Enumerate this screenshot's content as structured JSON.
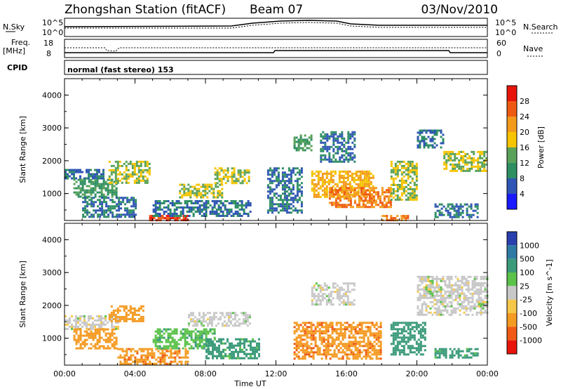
{
  "header": {
    "title": "Zhongshan Station (fitACF)",
    "beam": "Beam 07",
    "date": "03/Nov/2010"
  },
  "status_panels": {
    "nsky_label": "N.Sky",
    "nsky_ticks": [
      "10^5",
      "10^0"
    ],
    "nsearch_label": "N.Search",
    "nsearch_ticks": [
      "10^5",
      "10^0"
    ],
    "freq_label_1": "Freq.",
    "freq_label_2": "[MHz]",
    "freq_ticks": [
      "18",
      "8"
    ],
    "nave_label": "Nave",
    "nave_ticks": [
      "60",
      "0"
    ],
    "cpid_label": "CPID",
    "cpid_text": "normal (fast stereo) 153"
  },
  "colors": {
    "power_scale": [
      "#1a1aff",
      "#2f56b4",
      "#2e8f63",
      "#5aa25a",
      "#f6c400",
      "#f39a1c",
      "#ef5a12",
      "#e8140c"
    ],
    "velocity_scale": [
      "#e8140c",
      "#f05a14",
      "#f49b22",
      "#f6c84a",
      "#c8c8c8",
      "#5bc24a",
      "#3a9a7a",
      "#2f7aa4",
      "#2a3fae"
    ]
  },
  "chart_data": [
    {
      "type": "heatmap",
      "name_in_figure": "power panel",
      "ylabel": "Slant Range [km]",
      "xlabel": "Time UT",
      "x_ticks": [
        "00:00",
        "04:00",
        "08:00",
        "12:00",
        "16:00",
        "20:00",
        "00:00"
      ],
      "x_range_hours": [
        0,
        24
      ],
      "y_ticks": [
        1000,
        2000,
        3000,
        4000
      ],
      "y_range_km": [
        180,
        4500
      ],
      "colorbar_label": "Power [dB]",
      "colorbar_ticks": [
        "4",
        "8",
        "12",
        "16",
        "20",
        "24",
        "28"
      ],
      "colorbar_range": [
        0,
        32
      ],
      "echo_regions": [
        {
          "t0": 0.0,
          "t1": 2.2,
          "r0": 1450,
          "r1": 1750,
          "dB": 8
        },
        {
          "t0": 0.5,
          "t1": 3.0,
          "r0": 900,
          "r1": 1450,
          "dB": 12
        },
        {
          "t0": 2.5,
          "t1": 4.8,
          "r0": 1300,
          "r1": 2000,
          "dB": 16
        },
        {
          "t0": 1.0,
          "t1": 4.0,
          "r0": 300,
          "r1": 900,
          "dB": 8
        },
        {
          "t0": 4.8,
          "t1": 7.0,
          "r0": 180,
          "r1": 350,
          "dB": 28
        },
        {
          "t0": 5.0,
          "t1": 10.5,
          "r0": 350,
          "r1": 800,
          "dB": 8
        },
        {
          "t0": 6.5,
          "t1": 9.0,
          "r0": 900,
          "r1": 1300,
          "dB": 16
        },
        {
          "t0": 8.5,
          "t1": 10.5,
          "r0": 1350,
          "r1": 1800,
          "dB": 16
        },
        {
          "t0": 11.5,
          "t1": 13.5,
          "r0": 400,
          "r1": 1800,
          "dB": 8
        },
        {
          "t0": 13.0,
          "t1": 14.0,
          "r0": 2300,
          "r1": 2800,
          "dB": 12
        },
        {
          "t0": 14.0,
          "t1": 17.5,
          "r0": 900,
          "r1": 1700,
          "dB": 20
        },
        {
          "t0": 15.0,
          "t1": 18.5,
          "r0": 600,
          "r1": 1200,
          "dB": 24
        },
        {
          "t0": 14.5,
          "t1": 16.5,
          "r0": 2000,
          "r1": 2900,
          "dB": 8
        },
        {
          "t0": 18.0,
          "t1": 19.5,
          "r0": 180,
          "r1": 350,
          "dB": 24
        },
        {
          "t0": 18.5,
          "t1": 20.0,
          "r0": 800,
          "r1": 2000,
          "dB": 16
        },
        {
          "t0": 20.0,
          "t1": 21.5,
          "r0": 2400,
          "r1": 2950,
          "dB": 8
        },
        {
          "t0": 21.5,
          "t1": 24.0,
          "r0": 1700,
          "r1": 2300,
          "dB": 16
        },
        {
          "t0": 21.0,
          "t1": 23.5,
          "r0": 300,
          "r1": 700,
          "dB": 8
        }
      ]
    },
    {
      "type": "heatmap",
      "name_in_figure": "velocity panel",
      "ylabel": "Slant Range [km]",
      "xlabel": "Time UT",
      "x_ticks": [
        "00:00",
        "04:00",
        "08:00",
        "12:00",
        "16:00",
        "20:00",
        "00:00"
      ],
      "x_range_hours": [
        0,
        24
      ],
      "y_ticks": [
        1000,
        2000,
        3000,
        4000
      ],
      "y_range_km": [
        180,
        4500
      ],
      "colorbar_label": "Velocity [m s^-1]",
      "colorbar_ticks": [
        "-1000",
        "-500",
        "-100",
        "-25",
        "25",
        "100",
        "500",
        "1000"
      ],
      "echo_regions": [
        {
          "t0": 0.0,
          "t1": 3.0,
          "r0": 1300,
          "r1": 1700,
          "v": 0
        },
        {
          "t0": 0.5,
          "t1": 3.0,
          "r0": 700,
          "r1": 1300,
          "v": -200
        },
        {
          "t0": 2.5,
          "t1": 4.5,
          "r0": 1500,
          "r1": 2000,
          "v": -300
        },
        {
          "t0": 3.0,
          "t1": 7.0,
          "r0": 200,
          "r1": 700,
          "v": -400
        },
        {
          "t0": 5.0,
          "t1": 8.5,
          "r0": 700,
          "r1": 1300,
          "v": 80
        },
        {
          "t0": 7.0,
          "t1": 10.5,
          "r0": 1400,
          "r1": 1800,
          "v": 0
        },
        {
          "t0": 8.0,
          "t1": 11.0,
          "r0": 400,
          "r1": 1000,
          "v": 150
        },
        {
          "t0": 13.0,
          "t1": 18.0,
          "r0": 400,
          "r1": 1500,
          "v": -400
        },
        {
          "t0": 14.0,
          "t1": 16.5,
          "r0": 2000,
          "r1": 2700,
          "v": 0
        },
        {
          "t0": 18.5,
          "t1": 20.5,
          "r0": 500,
          "r1": 1500,
          "v": 200
        },
        {
          "t0": 20.0,
          "t1": 24.0,
          "r0": 1700,
          "r1": 2900,
          "v": 0
        },
        {
          "t0": 21.0,
          "t1": 23.5,
          "r0": 400,
          "r1": 700,
          "v": 150
        }
      ]
    }
  ]
}
